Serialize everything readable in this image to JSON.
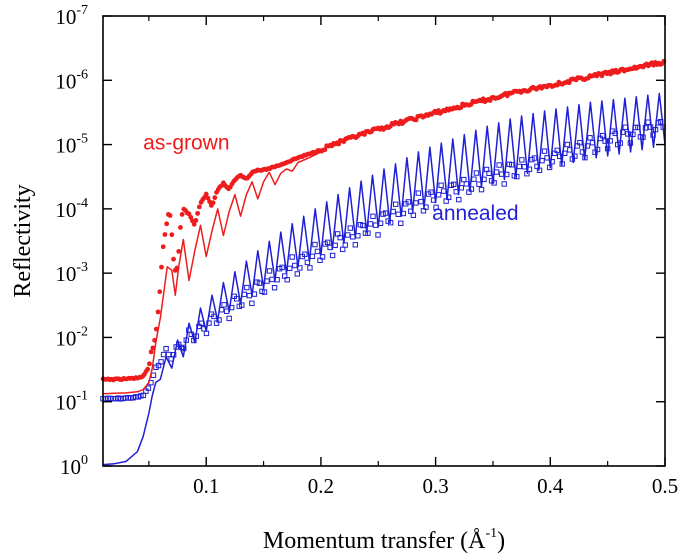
{
  "chart_data": {
    "type": "scatter",
    "xlabel": "Momentum transfer (Å",
    "xlabel_sup": "-1",
    "xlabel_end": ")",
    "ylabel": "Reflectivity",
    "xlim": [
      0.01,
      0.5
    ],
    "ylim_exponent": [
      -7,
      0
    ],
    "yscale": "log",
    "grid": false,
    "x_ticks": [
      {
        "value": 0.1,
        "label": "0.1"
      },
      {
        "value": 0.2,
        "label": "0.2"
      },
      {
        "value": 0.3,
        "label": "0.3"
      },
      {
        "value": 0.4,
        "label": "0.4"
      },
      {
        "value": 0.5,
        "label": "0.5"
      }
    ],
    "y_ticks": [
      {
        "exp": 0,
        "base": "10",
        "sup": "0"
      },
      {
        "exp": -1,
        "base": "10",
        "sup": "-1"
      },
      {
        "exp": -2,
        "base": "10",
        "sup": "-2"
      },
      {
        "exp": -3,
        "base": "10",
        "sup": "-3"
      },
      {
        "exp": -4,
        "base": "10",
        "sup": "-4"
      },
      {
        "exp": -5,
        "base": "10",
        "sup": "-5"
      },
      {
        "exp": -6,
        "base": "10",
        "sup": "-6"
      },
      {
        "exp": -7,
        "base": "10",
        "sup": "-7"
      }
    ],
    "series": [
      {
        "name": "annealed",
        "color": "#1f1fd6",
        "marker": "open-square",
        "fit_x": [
          0.01,
          0.02,
          0.03,
          0.04,
          0.045,
          0.05,
          0.053,
          0.056,
          0.06,
          0.065,
          0.07,
          0.075,
          0.08,
          0.085,
          0.09,
          0.095,
          0.1,
          0.105,
          0.11,
          0.115,
          0.12,
          0.125,
          0.13,
          0.135,
          0.14,
          0.145,
          0.15,
          0.155,
          0.16,
          0.165,
          0.17,
          0.175,
          0.18,
          0.185,
          0.19,
          0.195,
          0.2,
          0.205,
          0.21,
          0.215,
          0.22,
          0.225,
          0.23,
          0.235,
          0.24,
          0.245,
          0.25,
          0.255,
          0.26,
          0.265,
          0.27,
          0.275,
          0.28,
          0.285,
          0.29,
          0.295,
          0.3,
          0.305,
          0.31,
          0.315,
          0.32,
          0.325,
          0.33,
          0.335,
          0.34,
          0.345,
          0.35,
          0.355,
          0.36,
          0.365,
          0.37,
          0.375,
          0.38,
          0.385,
          0.39,
          0.395,
          0.4,
          0.405,
          0.41,
          0.415,
          0.42,
          0.425,
          0.43,
          0.435,
          0.44,
          0.445,
          0.45,
          0.455,
          0.46,
          0.465,
          0.47,
          0.475,
          0.48,
          0.485,
          0.49,
          0.495,
          0.5
        ],
        "fit_y": [
          0.95,
          0.92,
          0.85,
          0.6,
          0.35,
          0.15,
          0.08,
          0.05,
          0.045,
          0.02,
          0.03,
          0.011,
          0.02,
          0.006,
          0.012,
          0.0035,
          0.008,
          0.0022,
          0.0055,
          0.0014,
          0.004,
          0.00095,
          0.003,
          0.00065,
          0.0022,
          0.00045,
          0.0017,
          0.00032,
          0.0013,
          0.00023,
          0.001,
          0.00017,
          0.0008,
          0.00013,
          0.00065,
          0.0001,
          0.00052,
          7.8e-05,
          0.00042,
          6e-05,
          0.00034,
          4.7e-05,
          0.00028,
          3.7e-05,
          0.00023,
          3e-05,
          0.00019,
          2.4e-05,
          0.00016,
          2e-05,
          0.00013,
          1.6e-05,
          0.00011,
          1.3e-05,
          9.5e-05,
          1.1e-05,
          8e-05,
          9.5e-06,
          7e-05,
          8.2e-06,
          6e-05,
          7e-06,
          5.2e-05,
          6e-06,
          4.5e-05,
          5.2e-06,
          4e-05,
          4.6e-06,
          3.5e-05,
          4e-06,
          3.1e-05,
          3.6e-06,
          2.8e-05,
          3.3e-06,
          2.5e-05,
          3e-06,
          2.3e-05,
          2.8e-06,
          2.1e-05,
          2.6e-06,
          1.9e-05,
          2.4e-06,
          1.7e-05,
          2.2e-06,
          1.6e-05,
          2.1e-06,
          1.5e-05,
          2e-06,
          1.4e-05,
          1.9e-06,
          1.3e-05,
          1.8e-06,
          1.2e-05,
          1.7e-06,
          1.1e-05,
          1.6e-06,
          1e-05
        ],
        "data_x": [
          0.01,
          0.02,
          0.03,
          0.04,
          0.045,
          0.05,
          0.053,
          0.056,
          0.06,
          0.065,
          0.07,
          0.075,
          0.08,
          0.085,
          0.09,
          0.095,
          0.1,
          0.105,
          0.11,
          0.115,
          0.12,
          0.125,
          0.13,
          0.135,
          0.14,
          0.145,
          0.15,
          0.155,
          0.16,
          0.165,
          0.17,
          0.175,
          0.18,
          0.185,
          0.19,
          0.195,
          0.2,
          0.205,
          0.21,
          0.215,
          0.22,
          0.225,
          0.23,
          0.235,
          0.24,
          0.245,
          0.25,
          0.255,
          0.26,
          0.265,
          0.27,
          0.275,
          0.28,
          0.285,
          0.29,
          0.295,
          0.3,
          0.305,
          0.31,
          0.315,
          0.32,
          0.325,
          0.33,
          0.335,
          0.34,
          0.345,
          0.35,
          0.355,
          0.36,
          0.365,
          0.37,
          0.375,
          0.38,
          0.385,
          0.39,
          0.395,
          0.4,
          0.405,
          0.41,
          0.415,
          0.42,
          0.425,
          0.43,
          0.435,
          0.44,
          0.445,
          0.45,
          0.455,
          0.46,
          0.465,
          0.47,
          0.475,
          0.48,
          0.485,
          0.49,
          0.495,
          0.5
        ],
        "data_y": [
          0.09,
          0.09,
          0.088,
          0.085,
          0.08,
          0.06,
          0.045,
          0.03,
          0.025,
          0.015,
          0.023,
          0.012,
          0.016,
          0.0075,
          0.012,
          0.0055,
          0.009,
          0.004,
          0.0065,
          0.0029,
          0.005,
          0.0021,
          0.0038,
          0.0016,
          0.003,
          0.0012,
          0.0023,
          0.0009,
          0.0018,
          0.0007,
          0.0014,
          0.00055,
          0.0011,
          0.00044,
          0.0009,
          0.00035,
          0.0007,
          0.00028,
          0.00056,
          0.00023,
          0.00046,
          0.00018,
          0.00038,
          0.00015,
          0.0003,
          0.00012,
          0.00025,
          0.0001,
          0.0002,
          8.2e-05,
          0.00017,
          7e-05,
          0.00014,
          5.8e-05,
          0.00012,
          5e-05,
          0.0001,
          4.2e-05,
          8.5e-05,
          3.6e-05,
          7.2e-05,
          3.1e-05,
          6.2e-05,
          2.7e-05,
          5.3e-05,
          2.3e-05,
          4.6e-05,
          2e-05,
          4e-05,
          1.8e-05,
          3.5e-05,
          1.6e-05,
          3e-05,
          1.4e-05,
          2.7e-05,
          1.2e-05,
          2.3e-05,
          1.1e-05,
          2e-05,
          9.5e-06,
          1.8e-05,
          8.5e-06,
          1.6e-05,
          7.5e-06,
          1.4e-05,
          6.6e-06,
          1.2e-05,
          5.8e-06,
          1.1e-05,
          5.2e-06,
          9.5e-06,
          4.7e-06,
          8.5e-06,
          4.2e-06,
          7.6e-06,
          3.8e-06,
          6.8e-06
        ]
      },
      {
        "name": "as-grown",
        "color": "#ee1c1c",
        "marker": "filled-circle",
        "fit_x": [
          0.01,
          0.02,
          0.03,
          0.04,
          0.045,
          0.05,
          0.053,
          0.056,
          0.06,
          0.063,
          0.066,
          0.07,
          0.073,
          0.076,
          0.08,
          0.085,
          0.09,
          0.095,
          0.1,
          0.105,
          0.11,
          0.115,
          0.12,
          0.125,
          0.13,
          0.135,
          0.14,
          0.145,
          0.15,
          0.155,
          0.16,
          0.165,
          0.17,
          0.175,
          0.18,
          0.19,
          0.2
        ],
        "fit_y": [
          0.075,
          0.074,
          0.073,
          0.07,
          0.065,
          0.05,
          0.03,
          0.012,
          0.005,
          0.002,
          0.0008,
          0.0009,
          0.0022,
          0.0008,
          0.0003,
          0.0013,
          0.00045,
          0.00018,
          0.00055,
          0.00022,
          0.0001,
          0.00026,
          0.00011,
          6e-05,
          0.00013,
          6e-05,
          3.8e-05,
          7e-05,
          3.8e-05,
          2.7e-05,
          4.2e-05,
          2.8e-05,
          2.4e-05,
          2.6e-05,
          1.9e-05,
          1.6e-05,
          1.3e-05
        ],
        "data_x": [
          0.01,
          0.02,
          0.03,
          0.04,
          0.045,
          0.05,
          0.052,
          0.054,
          0.056,
          0.058,
          0.06,
          0.062,
          0.064,
          0.066,
          0.068,
          0.07,
          0.072,
          0.074,
          0.076,
          0.078,
          0.08,
          0.085,
          0.09,
          0.095,
          0.1,
          0.105,
          0.11,
          0.115,
          0.12,
          0.125,
          0.13,
          0.135,
          0.14,
          0.145,
          0.15,
          0.16,
          0.17,
          0.18,
          0.19,
          0.2,
          0.21,
          0.22,
          0.23,
          0.24,
          0.25,
          0.26,
          0.27,
          0.28,
          0.29,
          0.3,
          0.31,
          0.32,
          0.33,
          0.34,
          0.35,
          0.36,
          0.37,
          0.38,
          0.39,
          0.4,
          0.41,
          0.42,
          0.43,
          0.44,
          0.45,
          0.46,
          0.47,
          0.48,
          0.49,
          0.5
        ],
        "data_y": [
          0.045,
          0.045,
          0.044,
          0.043,
          0.04,
          0.03,
          0.017,
          0.014,
          0.009,
          0.004,
          0.0015,
          0.00045,
          0.00025,
          0.00015,
          0.0001,
          0.00025,
          0.0008,
          0.001,
          0.00045,
          0.00015,
          0.0001,
          0.00012,
          0.00018,
          8e-05,
          6e-05,
          9e-05,
          5e-05,
          4e-05,
          5e-05,
          3.5e-05,
          3e-05,
          3.4e-05,
          2.7e-05,
          2.5e-05,
          2.5e-05,
          2.2e-05,
          1.9e-05,
          1.6e-05,
          1.4e-05,
          1.2e-05,
          1e-05,
          8.8e-06,
          7.6e-06,
          6.6e-06,
          5.8e-06,
          5.1e-06,
          4.5e-06,
          4e-06,
          3.6e-06,
          3.2e-06,
          2.9e-06,
          2.6e-06,
          2.3e-06,
          2.1e-06,
          1.9e-06,
          1.7e-06,
          1.5e-06,
          1.4e-06,
          1.3e-06,
          1.2e-06,
          1.1e-06,
          1e-06,
          9.2e-07,
          8.4e-07,
          7.8e-07,
          7.2e-07,
          6.6e-07,
          6.1e-07,
          5.6e-07,
          5.2e-07
        ]
      }
    ],
    "annotations": [
      {
        "text": "annealed",
        "x": 0.297,
        "y": 0.00015,
        "color": "#1f1fd6"
      },
      {
        "text": "as-grown",
        "x": 0.045,
        "y": 1.2e-05,
        "color": "#ee1c1c"
      }
    ]
  }
}
